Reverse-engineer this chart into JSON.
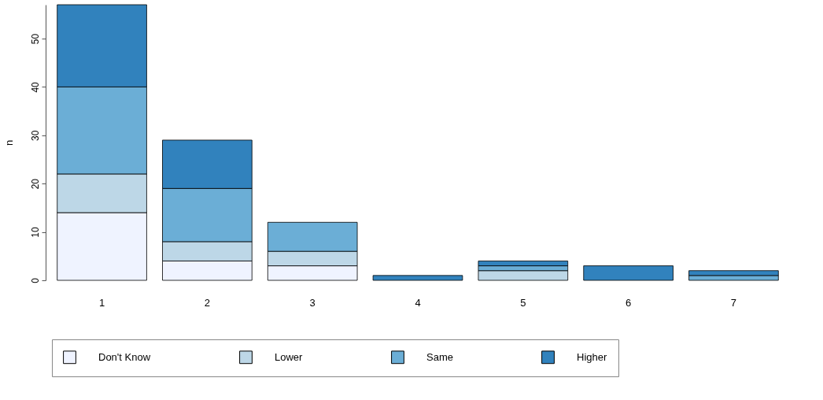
{
  "chart_data": {
    "type": "bar",
    "stacked": true,
    "ylabel": "n",
    "categories": [
      "1",
      "2",
      "3",
      "4",
      "5",
      "6",
      "7"
    ],
    "series": [
      {
        "name": "Don't Know",
        "color": "#eff3ff",
        "values": [
          14,
          4,
          3,
          0,
          0,
          0,
          0
        ]
      },
      {
        "name": "Lower",
        "color": "#bdd7e7",
        "values": [
          8,
          4,
          3,
          0,
          2,
          0,
          0
        ]
      },
      {
        "name": "Same",
        "color": "#6baed6",
        "values": [
          18,
          11,
          6,
          0,
          1,
          0,
          1
        ]
      },
      {
        "name": "Higher",
        "color": "#3182bd",
        "values": [
          17,
          10,
          0,
          1,
          1,
          3,
          1
        ]
      }
    ],
    "ylim": [
      0,
      57
    ],
    "yticks": [
      0,
      10,
      20,
      30,
      40,
      50
    ],
    "grid": false,
    "legend": "bottom"
  }
}
